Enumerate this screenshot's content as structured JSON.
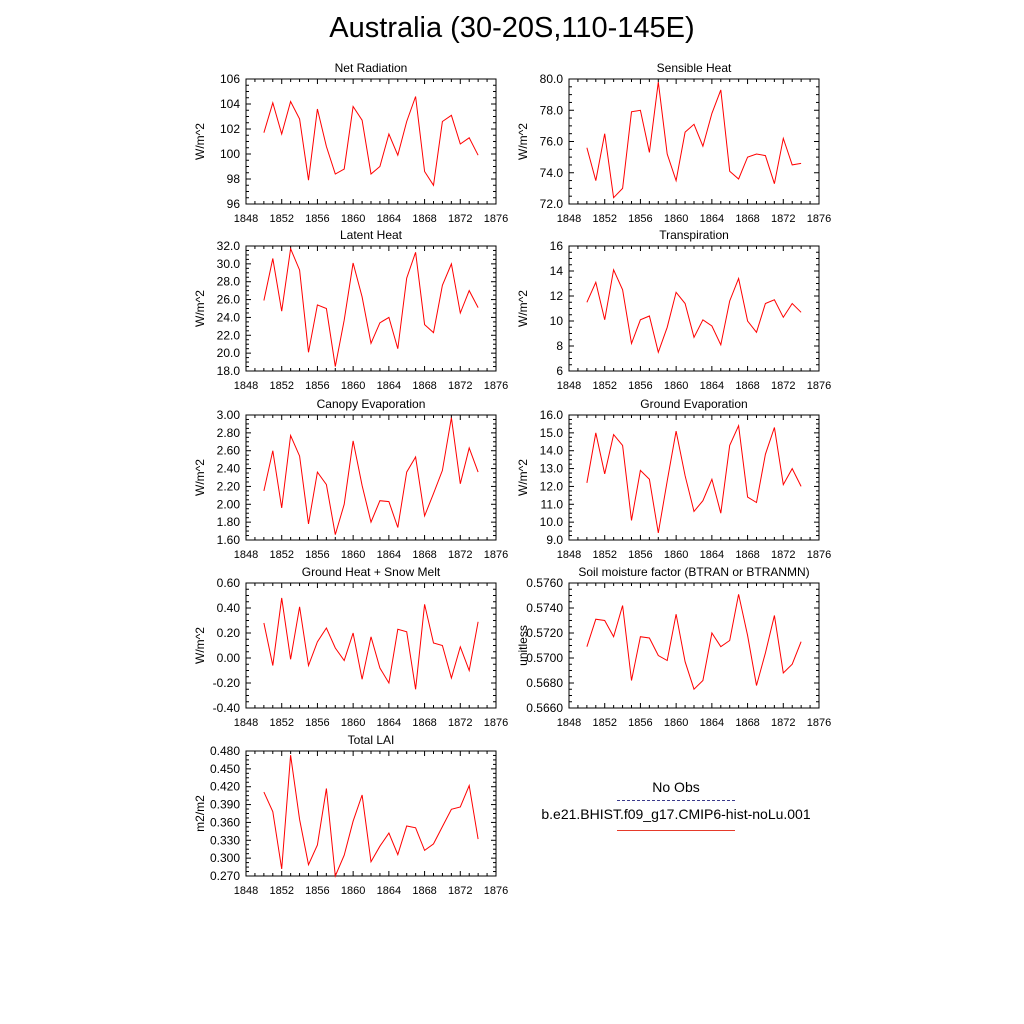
{
  "title": "Australia (30-20S,110-145E)",
  "legend": {
    "entries": [
      {
        "label": "No Obs",
        "color": "#3a3a8c",
        "style": "dashed"
      },
      {
        "label": "b.e21.BHIST.f09_g17.CMIP6-hist-noLu.001",
        "color": "#e63a2a",
        "style": "solid"
      }
    ]
  },
  "series_color": "#ff0000",
  "chart_data": [
    {
      "type": "line",
      "title": "Net Radiation",
      "ylabel": "W/m^2",
      "xlim": [
        1848,
        1876
      ],
      "ylim": [
        96,
        106
      ],
      "xticks": [
        "1848",
        "1852",
        "1856",
        "1860",
        "1864",
        "1868",
        "1872",
        "1876"
      ],
      "yticks": [
        "96",
        "98",
        "100",
        "102",
        "104",
        "106"
      ],
      "x": [
        1850,
        1851,
        1852,
        1853,
        1854,
        1855,
        1856,
        1857,
        1858,
        1859,
        1860,
        1861,
        1862,
        1863,
        1864,
        1865,
        1866,
        1867,
        1868,
        1869,
        1870,
        1871,
        1872,
        1873,
        1874
      ],
      "values": [
        101.7,
        104.1,
        101.6,
        104.2,
        102.8,
        97.9,
        103.6,
        100.6,
        98.4,
        98.8,
        103.8,
        102.7,
        98.4,
        99.0,
        101.6,
        99.9,
        102.6,
        104.6,
        98.6,
        97.5,
        102.6,
        103.1,
        100.8,
        101.3,
        99.9
      ]
    },
    {
      "type": "line",
      "title": "Sensible Heat",
      "ylabel": "W/m^2",
      "xlim": [
        1848,
        1876
      ],
      "ylim": [
        72.0,
        80.0
      ],
      "xticks": [
        "1848",
        "1852",
        "1856",
        "1860",
        "1864",
        "1868",
        "1872",
        "1876"
      ],
      "yticks": [
        "72.0",
        "74.0",
        "76.0",
        "78.0",
        "80.0"
      ],
      "x": [
        1850,
        1851,
        1852,
        1853,
        1854,
        1855,
        1856,
        1857,
        1858,
        1859,
        1860,
        1861,
        1862,
        1863,
        1864,
        1865,
        1866,
        1867,
        1868,
        1869,
        1870,
        1871,
        1872,
        1873,
        1874
      ],
      "values": [
        75.6,
        73.5,
        76.5,
        72.4,
        73.0,
        77.9,
        78.0,
        75.3,
        79.8,
        75.2,
        73.5,
        76.6,
        77.1,
        75.7,
        77.8,
        79.3,
        74.1,
        73.6,
        75.0,
        75.2,
        75.1,
        73.3,
        76.2,
        74.5,
        74.6
      ]
    },
    {
      "type": "line",
      "title": "Latent Heat",
      "ylabel": "W/m^2",
      "xlim": [
        1848,
        1876
      ],
      "ylim": [
        18.0,
        32.0
      ],
      "xticks": [
        "1848",
        "1852",
        "1856",
        "1860",
        "1864",
        "1868",
        "1872",
        "1876"
      ],
      "yticks": [
        "18.0",
        "20.0",
        "22.0",
        "24.0",
        "26.0",
        "28.0",
        "30.0",
        "32.0"
      ],
      "x": [
        1850,
        1851,
        1852,
        1853,
        1854,
        1855,
        1856,
        1857,
        1858,
        1859,
        1860,
        1861,
        1862,
        1863,
        1864,
        1865,
        1866,
        1867,
        1868,
        1869,
        1870,
        1871,
        1872,
        1873,
        1874
      ],
      "values": [
        25.9,
        30.6,
        24.7,
        31.7,
        29.3,
        20.1,
        25.4,
        25.0,
        18.5,
        23.7,
        30.1,
        26.3,
        21.1,
        23.4,
        24.0,
        20.5,
        28.4,
        31.3,
        23.2,
        22.3,
        27.6,
        30.0,
        24.5,
        27.0,
        25.1
      ]
    },
    {
      "type": "line",
      "title": "Transpiration",
      "ylabel": "W/m^2",
      "xlim": [
        1848,
        1876
      ],
      "ylim": [
        6,
        16
      ],
      "xticks": [
        "1848",
        "1852",
        "1856",
        "1860",
        "1864",
        "1868",
        "1872",
        "1876"
      ],
      "yticks": [
        "6",
        "8",
        "10",
        "12",
        "14",
        "16"
      ],
      "x": [
        1850,
        1851,
        1852,
        1853,
        1854,
        1855,
        1856,
        1857,
        1858,
        1859,
        1860,
        1861,
        1862,
        1863,
        1864,
        1865,
        1866,
        1867,
        1868,
        1869,
        1870,
        1871,
        1872,
        1873,
        1874
      ],
      "values": [
        11.5,
        13.1,
        10.1,
        14.1,
        12.5,
        8.2,
        10.1,
        10.4,
        7.5,
        9.5,
        12.3,
        11.4,
        8.7,
        10.1,
        9.6,
        8.1,
        11.6,
        13.4,
        10.0,
        9.1,
        11.4,
        11.7,
        10.3,
        11.4,
        10.7
      ]
    },
    {
      "type": "line",
      "title": "Canopy Evaporation",
      "ylabel": "W/m^2",
      "xlim": [
        1848,
        1876
      ],
      "ylim": [
        1.6,
        3.0
      ],
      "xticks": [
        "1848",
        "1852",
        "1856",
        "1860",
        "1864",
        "1868",
        "1872",
        "1876"
      ],
      "yticks": [
        "1.60",
        "1.80",
        "2.00",
        "2.20",
        "2.40",
        "2.60",
        "2.80",
        "3.00"
      ],
      "x": [
        1850,
        1851,
        1852,
        1853,
        1854,
        1855,
        1856,
        1857,
        1858,
        1859,
        1860,
        1861,
        1862,
        1863,
        1864,
        1865,
        1866,
        1867,
        1868,
        1869,
        1870,
        1871,
        1872,
        1873,
        1874
      ],
      "values": [
        2.15,
        2.6,
        1.96,
        2.77,
        2.54,
        1.78,
        2.36,
        2.22,
        1.66,
        2.0,
        2.71,
        2.21,
        1.8,
        2.04,
        2.03,
        1.74,
        2.36,
        2.53,
        1.87,
        2.12,
        2.38,
        2.97,
        2.23,
        2.63,
        2.36
      ]
    },
    {
      "type": "line",
      "title": "Ground Evaporation",
      "ylabel": "W/m^2",
      "xlim": [
        1848,
        1876
      ],
      "ylim": [
        9.0,
        16.0
      ],
      "xticks": [
        "1848",
        "1852",
        "1856",
        "1860",
        "1864",
        "1868",
        "1872",
        "1876"
      ],
      "yticks": [
        "9.0",
        "10.0",
        "11.0",
        "12.0",
        "13.0",
        "14.0",
        "15.0",
        "16.0"
      ],
      "x": [
        1850,
        1851,
        1852,
        1853,
        1854,
        1855,
        1856,
        1857,
        1858,
        1859,
        1860,
        1861,
        1862,
        1863,
        1864,
        1865,
        1866,
        1867,
        1868,
        1869,
        1870,
        1871,
        1872,
        1873,
        1874
      ],
      "values": [
        12.2,
        15.0,
        12.7,
        14.9,
        14.3,
        10.1,
        12.9,
        12.4,
        9.4,
        12.3,
        15.1,
        12.6,
        10.6,
        11.2,
        12.4,
        10.5,
        14.3,
        15.4,
        11.4,
        11.1,
        13.8,
        15.3,
        12.1,
        13.0,
        12.0
      ]
    },
    {
      "type": "line",
      "title": "Ground Heat + Snow Melt",
      "ylabel": "W/m^2",
      "xlim": [
        1848,
        1876
      ],
      "ylim": [
        -0.4,
        0.6
      ],
      "xticks": [
        "1848",
        "1852",
        "1856",
        "1860",
        "1864",
        "1868",
        "1872",
        "1876"
      ],
      "yticks": [
        "-0.40",
        "-0.20",
        "0.00",
        "0.20",
        "0.40",
        "0.60"
      ],
      "x": [
        1850,
        1851,
        1852,
        1853,
        1854,
        1855,
        1856,
        1857,
        1858,
        1859,
        1860,
        1861,
        1862,
        1863,
        1864,
        1865,
        1866,
        1867,
        1868,
        1869,
        1870,
        1871,
        1872,
        1873,
        1874
      ],
      "values": [
        0.28,
        -0.06,
        0.48,
        -0.01,
        0.41,
        -0.06,
        0.13,
        0.24,
        0.08,
        -0.02,
        0.2,
        -0.17,
        0.17,
        -0.08,
        -0.2,
        0.23,
        0.21,
        -0.25,
        0.43,
        0.12,
        0.1,
        -0.16,
        0.09,
        -0.1,
        0.29
      ]
    },
    {
      "type": "line",
      "title": "Soil moisture factor (BTRAN or BTRANMN)",
      "ylabel": "unitless",
      "xlim": [
        1848,
        1876
      ],
      "ylim": [
        0.566,
        0.576
      ],
      "xticks": [
        "1848",
        "1852",
        "1856",
        "1860",
        "1864",
        "1868",
        "1872",
        "1876"
      ],
      "yticks": [
        "0.5660",
        "0.5680",
        "0.5700",
        "0.5720",
        "0.5740",
        "0.5760"
      ],
      "x": [
        1850,
        1851,
        1852,
        1853,
        1854,
        1855,
        1856,
        1857,
        1858,
        1859,
        1860,
        1861,
        1862,
        1863,
        1864,
        1865,
        1866,
        1867,
        1868,
        1869,
        1870,
        1871,
        1872,
        1873,
        1874
      ],
      "values": [
        0.5709,
        0.5731,
        0.573,
        0.5717,
        0.5742,
        0.5682,
        0.5717,
        0.5716,
        0.5702,
        0.5698,
        0.5735,
        0.5697,
        0.5675,
        0.5682,
        0.572,
        0.5709,
        0.5714,
        0.5751,
        0.5718,
        0.5678,
        0.5704,
        0.5734,
        0.5688,
        0.5695,
        0.5713
      ]
    },
    {
      "type": "line",
      "title": "Total LAI",
      "ylabel": "m2/m2",
      "xlim": [
        1848,
        1876
      ],
      "ylim": [
        0.27,
        0.48
      ],
      "xticks": [
        "1848",
        "1852",
        "1856",
        "1860",
        "1864",
        "1868",
        "1872",
        "1876"
      ],
      "yticks": [
        "0.270",
        "0.300",
        "0.330",
        "0.360",
        "0.390",
        "0.420",
        "0.450",
        "0.480"
      ],
      "x": [
        1850,
        1851,
        1852,
        1853,
        1854,
        1855,
        1856,
        1857,
        1858,
        1859,
        1860,
        1861,
        1862,
        1863,
        1864,
        1865,
        1866,
        1867,
        1868,
        1869,
        1870,
        1871,
        1872,
        1873,
        1874
      ],
      "values": [
        0.411,
        0.378,
        0.282,
        0.473,
        0.365,
        0.289,
        0.322,
        0.417,
        0.27,
        0.305,
        0.362,
        0.406,
        0.294,
        0.32,
        0.342,
        0.306,
        0.354,
        0.351,
        0.313,
        0.324,
        0.353,
        0.382,
        0.386,
        0.422,
        0.332
      ]
    }
  ]
}
